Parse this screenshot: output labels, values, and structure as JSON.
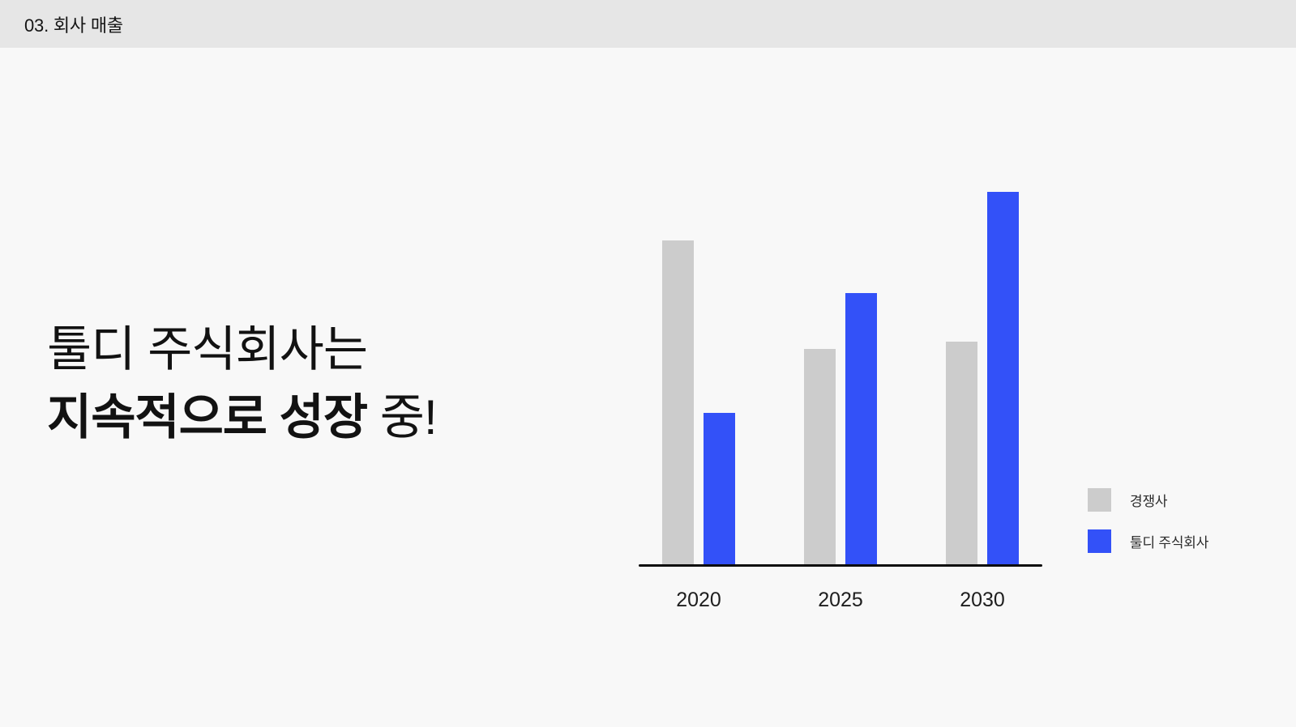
{
  "header": {
    "title": "03. 회사 매출"
  },
  "headline": {
    "line1": "툴디 주식회사는",
    "line2_bold": "지속적으로 성장",
    "line2_regular": " 중!"
  },
  "chart_data": {
    "type": "bar",
    "title": "",
    "categories": [
      "2020",
      "2025",
      "2030"
    ],
    "series": [
      {
        "key": "competitor",
        "name": "경쟁사",
        "color": "#cccccc",
        "values": [
          87,
          58,
          60
        ]
      },
      {
        "key": "company",
        "name": "툴디 주식회사",
        "color": "#3351f8",
        "values": [
          41,
          73,
          100
        ]
      }
    ],
    "ylim": [
      0,
      100
    ],
    "y_axis_labeled": false,
    "grid": false,
    "legend_position": "right-of-chart",
    "value_note": "no y-axis ticks shown; values estimated relative to tallest bar = 100"
  },
  "colors": {
    "page_background": "#f8f8f8",
    "header_background": "#e6e6e6",
    "competitor_bar": "#cccccc",
    "company_bar": "#3351f8",
    "axis_line": "#0c0c0c",
    "text": "#121212"
  }
}
